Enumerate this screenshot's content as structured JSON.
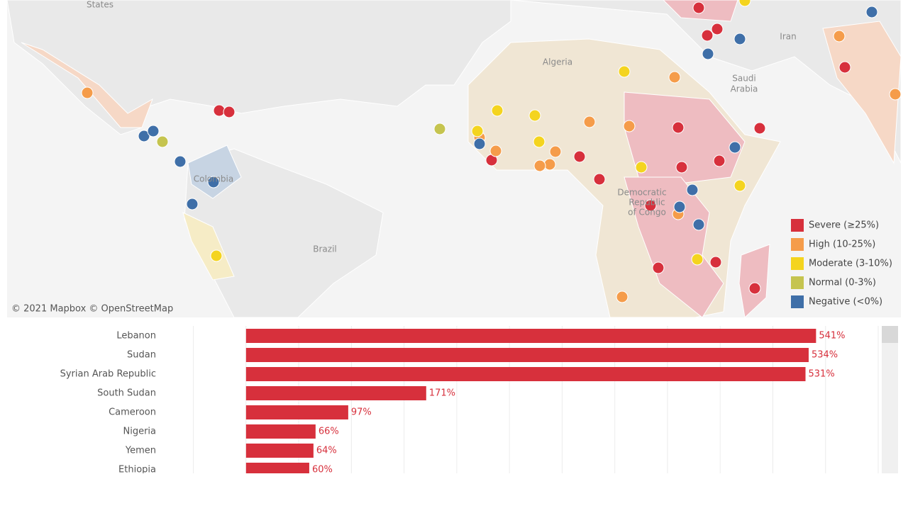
{
  "map": {
    "labels": [
      "States",
      "Algeria",
      "Iran",
      "Saudi",
      "Arabia",
      "Brazil",
      "Colombia",
      "Democratic",
      "Republic",
      "of Congo"
    ],
    "attribution": "© 2021 Mapbox  © OpenStreetMap",
    "legend": [
      {
        "label": "Severe (≥25%)",
        "color": "#d7303c"
      },
      {
        "label": "High (10-25%)",
        "color": "#f59c4a"
      },
      {
        "label": "Moderate (3-10%)",
        "color": "#f4d41f"
      },
      {
        "label": "Normal (0-3%)",
        "color": "#c5c44f"
      },
      {
        "label": "Negative (<0%)",
        "color": "#3f6fa8"
      }
    ]
  },
  "chart_data": {
    "type": "bar",
    "orientation": "horizontal",
    "categories": [
      "Lebanon",
      "Sudan",
      "Syrian Arab Republic",
      "South Sudan",
      "Cameroon",
      "Nigeria",
      "Yemen",
      "Ethiopia"
    ],
    "values": [
      541,
      534,
      531,
      171,
      97,
      66,
      64,
      60
    ],
    "value_labels": [
      "541%",
      "534%",
      "531%",
      "171%",
      "97%",
      "66%",
      "64%",
      "60%"
    ],
    "color": "#d7303c",
    "xlim": [
      -80,
      600
    ],
    "xticks": [
      -50,
      0,
      50,
      100,
      150,
      200,
      250,
      300,
      350,
      400,
      450,
      500,
      550,
      600
    ],
    "grid": true
  }
}
